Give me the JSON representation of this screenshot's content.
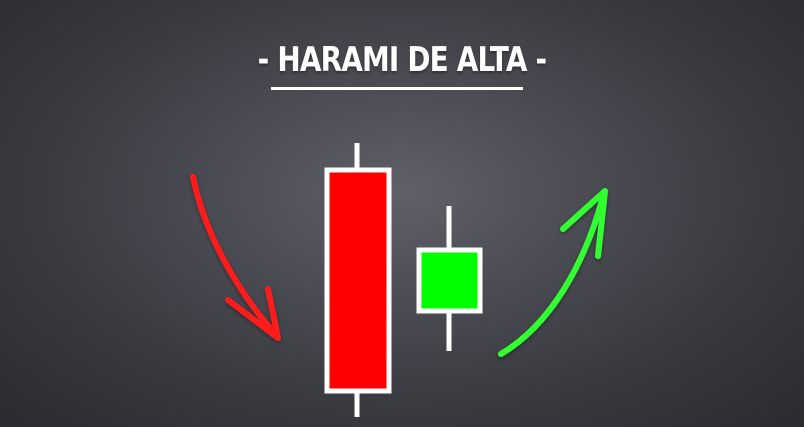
{
  "title": "- HARAMI DE ALTA -",
  "candles": [
    {
      "color": "#ff0000",
      "direction": "bearish"
    },
    {
      "color": "#00ff00",
      "direction": "bullish"
    }
  ],
  "arrows": [
    {
      "color": "#ff1a1a",
      "direction": "down"
    },
    {
      "color": "#33ff33",
      "direction": "up"
    }
  ],
  "colors": {
    "background": "#3f4047",
    "outline": "#ffffff"
  }
}
